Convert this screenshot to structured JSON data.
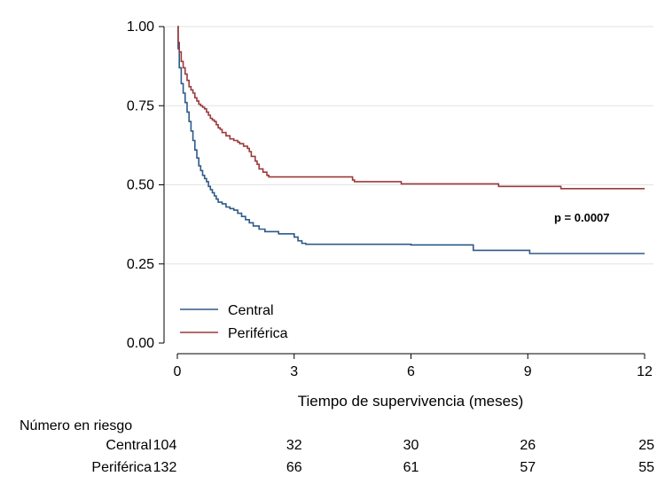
{
  "chart_data": {
    "type": "line",
    "subtype": "kaplan-meier",
    "title": "",
    "xlabel": "Tiempo de supervivencia (meses)",
    "ylabel": "",
    "xlim": [
      0,
      12
    ],
    "ylim": [
      0,
      1
    ],
    "xticks": [
      0,
      3,
      6,
      9,
      12
    ],
    "xtick_labels": [
      "0",
      "3",
      "6",
      "9",
      "12"
    ],
    "yticks": [
      0,
      0.25,
      0.5,
      0.75,
      1.0
    ],
    "ytick_labels": [
      "0.00",
      "0.25",
      "0.50",
      "0.75",
      "1.00"
    ],
    "grid": "horizontal",
    "legend_position": "bottom-left",
    "annotation": "p = 0.0007",
    "series": [
      {
        "name": "Central",
        "color": "#2e5a88",
        "points": [
          [
            0,
            1.0
          ],
          [
            0.02,
            0.93
          ],
          [
            0.05,
            0.87
          ],
          [
            0.1,
            0.82
          ],
          [
            0.15,
            0.79
          ],
          [
            0.2,
            0.76
          ],
          [
            0.25,
            0.73
          ],
          [
            0.3,
            0.7
          ],
          [
            0.35,
            0.67
          ],
          [
            0.4,
            0.64
          ],
          [
            0.45,
            0.61
          ],
          [
            0.5,
            0.585
          ],
          [
            0.55,
            0.56
          ],
          [
            0.6,
            0.545
          ],
          [
            0.65,
            0.53
          ],
          [
            0.7,
            0.52
          ],
          [
            0.75,
            0.51
          ],
          [
            0.8,
            0.495
          ],
          [
            0.85,
            0.485
          ],
          [
            0.9,
            0.475
          ],
          [
            0.95,
            0.465
          ],
          [
            1.0,
            0.455
          ],
          [
            1.05,
            0.445
          ],
          [
            1.15,
            0.44
          ],
          [
            1.25,
            0.43
          ],
          [
            1.35,
            0.425
          ],
          [
            1.45,
            0.42
          ],
          [
            1.55,
            0.41
          ],
          [
            1.65,
            0.4
          ],
          [
            1.75,
            0.39
          ],
          [
            1.85,
            0.38
          ],
          [
            1.95,
            0.37
          ],
          [
            2.1,
            0.36
          ],
          [
            2.25,
            0.352
          ],
          [
            2.5,
            0.352
          ],
          [
            2.6,
            0.345
          ],
          [
            2.9,
            0.345
          ],
          [
            3.0,
            0.335
          ],
          [
            3.1,
            0.323
          ],
          [
            3.2,
            0.315
          ],
          [
            3.3,
            0.312
          ],
          [
            4.5,
            0.312
          ],
          [
            6.0,
            0.31
          ],
          [
            7.5,
            0.31
          ],
          [
            7.6,
            0.293
          ],
          [
            9.0,
            0.293
          ],
          [
            9.05,
            0.283
          ],
          [
            12.0,
            0.283
          ]
        ]
      },
      {
        "name": "Periférica",
        "color": "#9b3a3a",
        "points": [
          [
            0,
            1.0
          ],
          [
            0.02,
            0.95
          ],
          [
            0.05,
            0.92
          ],
          [
            0.1,
            0.89
          ],
          [
            0.15,
            0.87
          ],
          [
            0.2,
            0.85
          ],
          [
            0.25,
            0.83
          ],
          [
            0.3,
            0.81
          ],
          [
            0.35,
            0.8
          ],
          [
            0.4,
            0.79
          ],
          [
            0.45,
            0.775
          ],
          [
            0.5,
            0.765
          ],
          [
            0.55,
            0.755
          ],
          [
            0.6,
            0.75
          ],
          [
            0.65,
            0.745
          ],
          [
            0.7,
            0.74
          ],
          [
            0.75,
            0.73
          ],
          [
            0.8,
            0.72
          ],
          [
            0.85,
            0.71
          ],
          [
            0.9,
            0.705
          ],
          [
            0.95,
            0.7
          ],
          [
            1.0,
            0.69
          ],
          [
            1.05,
            0.68
          ],
          [
            1.1,
            0.675
          ],
          [
            1.15,
            0.665
          ],
          [
            1.25,
            0.655
          ],
          [
            1.35,
            0.645
          ],
          [
            1.45,
            0.64
          ],
          [
            1.55,
            0.635
          ],
          [
            1.6,
            0.63
          ],
          [
            1.7,
            0.622
          ],
          [
            1.8,
            0.615
          ],
          [
            1.85,
            0.605
          ],
          [
            1.9,
            0.59
          ],
          [
            2.0,
            0.575
          ],
          [
            2.05,
            0.565
          ],
          [
            2.1,
            0.55
          ],
          [
            2.2,
            0.54
          ],
          [
            2.3,
            0.53
          ],
          [
            2.35,
            0.525
          ],
          [
            4.4,
            0.525
          ],
          [
            4.5,
            0.515
          ],
          [
            4.55,
            0.51
          ],
          [
            5.7,
            0.51
          ],
          [
            5.75,
            0.503
          ],
          [
            8.2,
            0.503
          ],
          [
            8.25,
            0.495
          ],
          [
            9.8,
            0.495
          ],
          [
            9.85,
            0.488
          ],
          [
            12.0,
            0.488
          ]
        ]
      }
    ],
    "risk_table": {
      "header": "Número en riesgo",
      "times": [
        0,
        3,
        6,
        9,
        12
      ],
      "rows": [
        {
          "label": "Central",
          "values": [
            "104",
            "32",
            "30",
            "26",
            "25"
          ]
        },
        {
          "label": "Periférica",
          "values": [
            "132",
            "66",
            "61",
            "57",
            "55"
          ]
        }
      ]
    }
  }
}
